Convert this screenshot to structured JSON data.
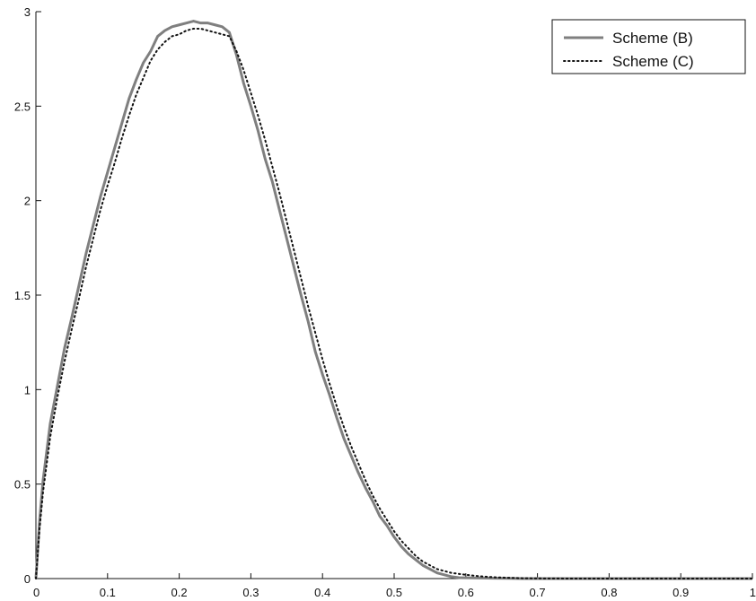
{
  "chart_data": {
    "type": "line",
    "title": "",
    "xlabel": "",
    "ylabel": "",
    "xlim": [
      0,
      1
    ],
    "ylim": [
      0,
      3
    ],
    "grid": false,
    "legend_position": "top-right",
    "x_ticks": [
      "0",
      "0.1",
      "0.2",
      "0.3",
      "0.4",
      "0.5",
      "0.6",
      "0.7",
      "0.8",
      "0.9",
      "1"
    ],
    "y_ticks": [
      "0",
      "0.5",
      "1",
      "1.5",
      "2",
      "2.5",
      "3"
    ],
    "series": [
      {
        "name": "Scheme (B)",
        "style": "solid",
        "color": "#7f7f7f",
        "x": [
          0,
          0.005,
          0.01,
          0.02,
          0.03,
          0.04,
          0.05,
          0.06,
          0.07,
          0.08,
          0.09,
          0.1,
          0.11,
          0.12,
          0.13,
          0.14,
          0.15,
          0.16,
          0.17,
          0.18,
          0.19,
          0.2,
          0.21,
          0.22,
          0.23,
          0.24,
          0.25,
          0.26,
          0.27,
          0.28,
          0.29,
          0.3,
          0.31,
          0.32,
          0.33,
          0.34,
          0.35,
          0.36,
          0.37,
          0.38,
          0.39,
          0.4,
          0.41,
          0.42,
          0.43,
          0.44,
          0.45,
          0.46,
          0.47,
          0.48,
          0.49,
          0.5,
          0.51,
          0.52,
          0.53,
          0.54,
          0.55,
          0.56,
          0.57,
          0.58,
          0.59,
          0.6,
          0.62,
          0.64,
          0.66,
          0.68,
          0.7,
          0.75,
          0.8,
          0.9,
          1.0
        ],
        "y": [
          0,
          0.3,
          0.52,
          0.82,
          1.02,
          1.22,
          1.38,
          1.55,
          1.72,
          1.87,
          2.02,
          2.15,
          2.28,
          2.41,
          2.54,
          2.64,
          2.73,
          2.79,
          2.87,
          2.9,
          2.92,
          2.93,
          2.94,
          2.95,
          2.94,
          2.94,
          2.93,
          2.92,
          2.89,
          2.77,
          2.62,
          2.5,
          2.37,
          2.22,
          2.1,
          1.95,
          1.8,
          1.65,
          1.5,
          1.36,
          1.2,
          1.08,
          0.97,
          0.85,
          0.74,
          0.65,
          0.56,
          0.48,
          0.41,
          0.33,
          0.28,
          0.22,
          0.17,
          0.13,
          0.1,
          0.07,
          0.05,
          0.03,
          0.02,
          0.01,
          0.005,
          0.004,
          0.003,
          0.002,
          0.001,
          0.0,
          0.0,
          0.0,
          0.0,
          0.0,
          0.0
        ]
      },
      {
        "name": "Scheme (C)",
        "style": "dotted",
        "color": "#111111",
        "x": [
          0,
          0.005,
          0.01,
          0.02,
          0.03,
          0.04,
          0.05,
          0.06,
          0.07,
          0.08,
          0.09,
          0.1,
          0.11,
          0.12,
          0.13,
          0.14,
          0.15,
          0.16,
          0.17,
          0.18,
          0.19,
          0.2,
          0.21,
          0.22,
          0.23,
          0.24,
          0.25,
          0.26,
          0.27,
          0.28,
          0.29,
          0.3,
          0.31,
          0.32,
          0.33,
          0.34,
          0.35,
          0.36,
          0.37,
          0.38,
          0.39,
          0.4,
          0.41,
          0.42,
          0.43,
          0.44,
          0.45,
          0.46,
          0.47,
          0.48,
          0.49,
          0.5,
          0.51,
          0.52,
          0.53,
          0.54,
          0.55,
          0.56,
          0.57,
          0.58,
          0.59,
          0.6,
          0.62,
          0.64,
          0.66,
          0.68,
          0.7,
          0.75,
          0.8,
          0.9,
          1.0
        ],
        "y": [
          0,
          0.26,
          0.46,
          0.75,
          0.96,
          1.15,
          1.32,
          1.48,
          1.65,
          1.8,
          1.95,
          2.08,
          2.2,
          2.33,
          2.45,
          2.56,
          2.65,
          2.74,
          2.8,
          2.84,
          2.87,
          2.88,
          2.9,
          2.91,
          2.91,
          2.9,
          2.89,
          2.88,
          2.87,
          2.79,
          2.69,
          2.57,
          2.45,
          2.32,
          2.18,
          2.04,
          1.89,
          1.74,
          1.59,
          1.44,
          1.3,
          1.16,
          1.03,
          0.91,
          0.8,
          0.7,
          0.61,
          0.52,
          0.44,
          0.37,
          0.31,
          0.25,
          0.2,
          0.16,
          0.12,
          0.09,
          0.07,
          0.05,
          0.04,
          0.03,
          0.025,
          0.02,
          0.012,
          0.007,
          0.004,
          0.002,
          0.001,
          0.0,
          0.0,
          0.0,
          0.0
        ]
      }
    ]
  }
}
